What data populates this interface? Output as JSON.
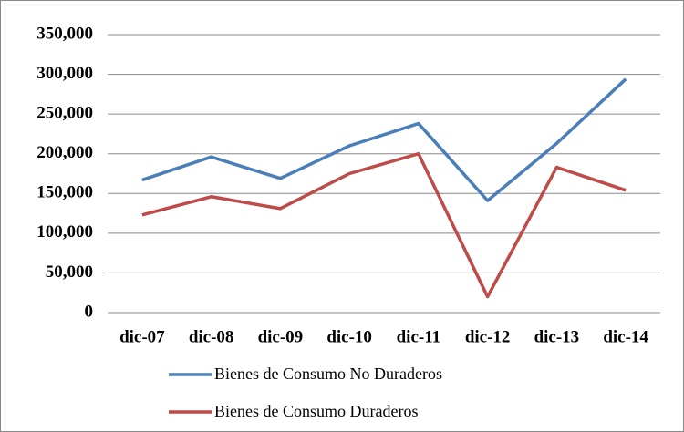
{
  "chart_data": {
    "type": "line",
    "categories": [
      "dic-07",
      "dic-08",
      "dic-09",
      "dic-10",
      "dic-11",
      "dic-12",
      "dic-13",
      "dic-14"
    ],
    "series": [
      {
        "name": "Bienes de Consumo No Duraderos",
        "color": "#4a7ebb",
        "values": [
          167000,
          196000,
          169000,
          210000,
          238000,
          141000,
          213000,
          294000
        ]
      },
      {
        "name": "Bienes de Consumo Duraderos",
        "color": "#be4b48",
        "values": [
          123000,
          146000,
          131000,
          175000,
          200000,
          20000,
          183000,
          154000
        ]
      }
    ],
    "ylim": [
      0,
      350000
    ],
    "yticks": [
      0,
      {
        "value": 50000,
        "label": "50,000"
      },
      {
        "value": 100000,
        "label": "100,000"
      },
      {
        "value": 150000,
        "label": "150,000"
      },
      {
        "value": 200000,
        "label": "200,000"
      },
      {
        "value": 250000,
        "label": "250,000"
      },
      {
        "value": 300000,
        "label": "300,000"
      },
      {
        "value": 350000,
        "label": "350,000"
      }
    ],
    "grid": true
  }
}
